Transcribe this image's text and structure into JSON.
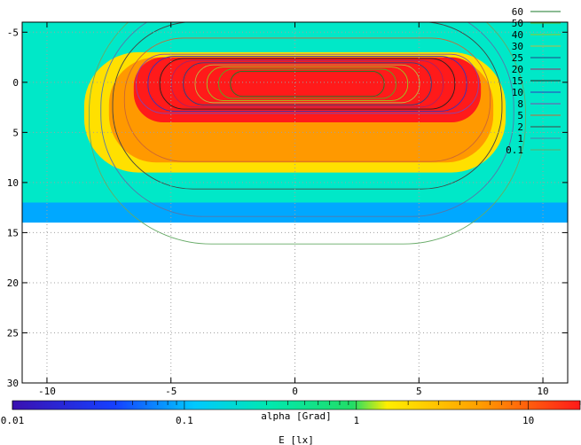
{
  "chart_data": {
    "type": "heatmap",
    "title": "",
    "xlabel": "alpha [Grad]",
    "ylabel": "",
    "x_range": [
      -11,
      11
    ],
    "y_range": [
      -6,
      30
    ],
    "y_inverted": true,
    "x_ticks": [
      -10,
      -5,
      0,
      5,
      10
    ],
    "x_tick_labels": [
      "-10",
      "-5",
      "0",
      "5",
      "10"
    ],
    "y_ticks": [
      -5,
      0,
      5,
      10,
      15,
      20,
      25,
      30
    ],
    "y_tick_labels": [
      "-5",
      "0",
      "5",
      "10",
      "15",
      "20",
      "25",
      "30"
    ],
    "grid": true,
    "data_extent": {
      "x": [
        -11,
        11
      ],
      "y": [
        -6,
        14
      ]
    },
    "contour_levels": [
      "60",
      "50",
      "40",
      "30",
      "25",
      "20",
      "15",
      "10",
      "8",
      "5",
      "2",
      "1",
      "0.1"
    ],
    "contour_colors": [
      "#1a7a2a",
      "#55aa22",
      "#99cc22",
      "#bbbb44",
      "#224488",
      "#aa2266",
      "#222222",
      "#3333bb",
      "#8844aa",
      "#cc6633",
      "#444444",
      "#5577aa",
      "#66aa66"
    ],
    "legend_position": "top-right",
    "colorbar": {
      "scale": "log",
      "range": [
        0.01,
        20
      ],
      "tick_labels": [
        "0.01",
        "0.1",
        "1",
        "10"
      ],
      "tick_values": [
        0.01,
        0.1,
        1,
        10
      ],
      "title": "E [lx]"
    },
    "regions": [
      {
        "level": 0.05,
        "color": "#00a8ff",
        "x": [
          -11,
          11
        ],
        "y": [
          12,
          14
        ]
      },
      {
        "level": 0.3,
        "color": "#00e8c8",
        "x": [
          -11,
          11
        ],
        "y": [
          -6,
          12
        ]
      },
      {
        "level": 1.5,
        "color": "#ffe000",
        "x": [
          -8.5,
          8.5
        ],
        "y": [
          -3,
          9
        ]
      },
      {
        "level": 4,
        "color": "#ff9900",
        "x": [
          -7.5,
          8
        ],
        "y": [
          -2.5,
          8
        ]
      },
      {
        "level": 12,
        "color": "#ff1a1a",
        "x": [
          -6.5,
          7.5
        ],
        "y": [
          -2.5,
          4
        ]
      }
    ]
  },
  "colors": {
    "grid": "#a0a0a0",
    "axis": "#000000"
  }
}
